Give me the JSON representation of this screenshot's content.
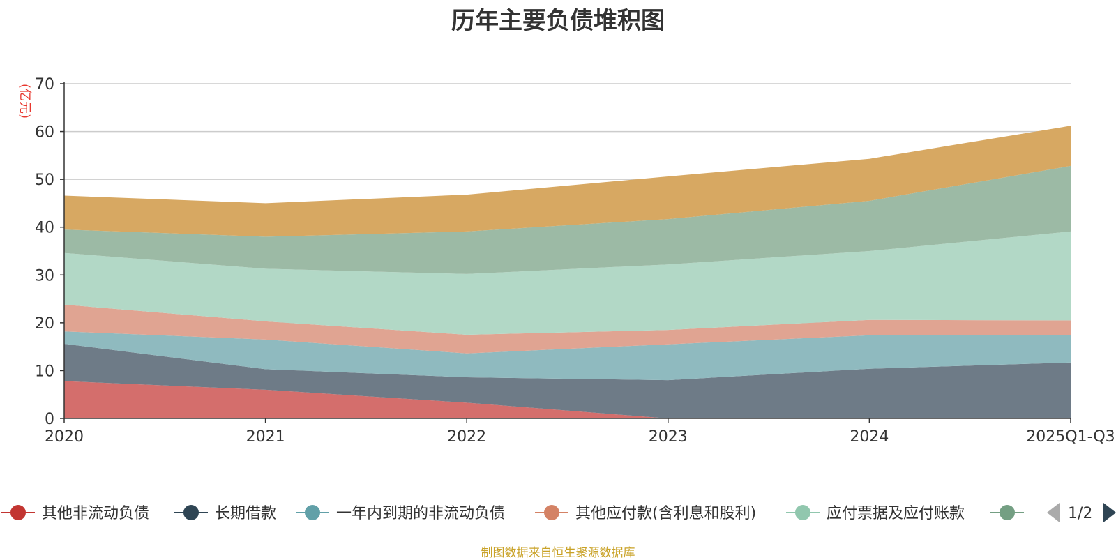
{
  "chart_data": {
    "type": "area",
    "stacked": true,
    "title": "历年主要负债堆积图",
    "ylabel": "(亿元)",
    "xlabel": "",
    "ylim": [
      0,
      70
    ],
    "yticks": [
      0,
      10,
      20,
      30,
      40,
      50,
      60,
      70
    ],
    "grid": true,
    "categories": [
      "2020",
      "2021",
      "2022",
      "2023",
      "2024",
      "2025Q1-Q3"
    ],
    "series": [
      {
        "name": "其他非流动负债",
        "color": "#d46e6c",
        "marker_color": "#c23531",
        "values": [
          7.8,
          6.0,
          3.3,
          0.0,
          0.0,
          0.0
        ]
      },
      {
        "name": "长期借款",
        "color": "#6e7b87",
        "marker_color": "#2f4554",
        "values": [
          7.8,
          4.3,
          5.3,
          8.0,
          10.4,
          11.7
        ]
      },
      {
        "name": "一年内到期的非流动负债",
        "color": "#8fbabf",
        "marker_color": "#61a0a8",
        "values": [
          2.6,
          6.2,
          5.0,
          7.5,
          7.0,
          5.8
        ]
      },
      {
        "name": "其他应付款(含利息和股利)",
        "color": "#e0a492",
        "marker_color": "#d48265",
        "values": [
          5.6,
          3.8,
          3.9,
          3.0,
          3.2,
          3.0
        ]
      },
      {
        "name": "应付票据及应付账款",
        "color": "#b2d8c6",
        "marker_color": "#91c7ae",
        "values": [
          10.8,
          11.0,
          12.7,
          13.7,
          14.4,
          18.6
        ]
      },
      {
        "name": "",
        "color": "#9cbaa5",
        "marker_color": "#749f83",
        "values": [
          4.9,
          6.7,
          8.9,
          9.5,
          10.5,
          13.7
        ]
      },
      {
        "name": "",
        "color": "#d7a862",
        "marker_color": "#ca8622",
        "values": [
          7.1,
          7.0,
          7.7,
          8.9,
          8.8,
          8.4
        ]
      }
    ],
    "legend": {
      "position": "bottom",
      "page": "1/2",
      "visible_count": 6
    }
  },
  "source_note": "制图数据来自恒生聚源数据库"
}
